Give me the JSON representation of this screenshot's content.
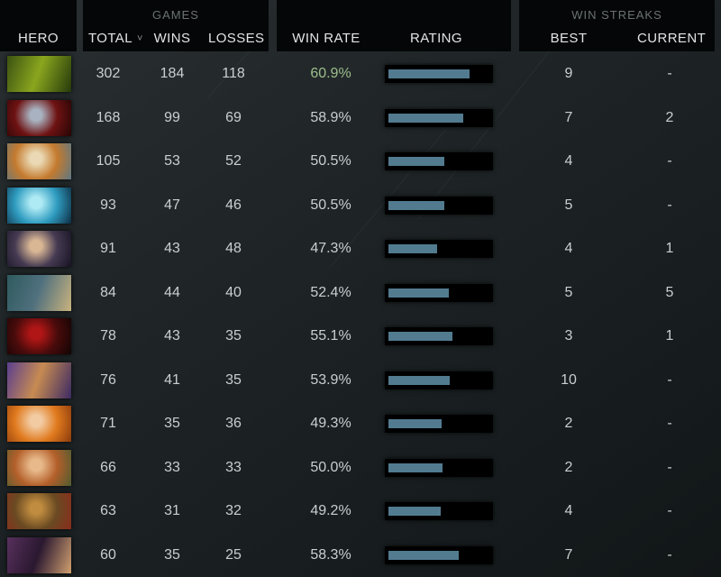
{
  "header": {
    "hero": "HERO",
    "games_group": "GAMES",
    "total": "TOTAL",
    "sort_indicator": "˅",
    "wins": "WINS",
    "losses": "LOSSES",
    "win_rate": "WIN RATE",
    "rating": "RATING",
    "streaks_group": "WIN STREAKS",
    "best": "BEST",
    "current": "CURRENT"
  },
  "colors": {
    "panel_bg": "#040607",
    "page_bg": "#1d2325",
    "text": "#c9cfcf",
    "header_text": "#e2e5e5",
    "group_text": "#6b7274",
    "rating_fill": "#527b90",
    "bar_bg": "#000000",
    "win_rate_highlight": "#9cbe8c"
  },
  "rows": [
    {
      "hero": {
        "name": "venomancer",
        "style": "linear",
        "colors": [
          "#3c5212",
          "#8aa61e",
          "#263a0b"
        ]
      },
      "total": "302",
      "wins": "184",
      "losses": "118",
      "win_rate": "60.9%",
      "win_rate_highlight": true,
      "rating_pct": 75,
      "best": "9",
      "current": "-"
    },
    {
      "hero": {
        "name": "queen-of-pain",
        "style": "radial",
        "colors": [
          "#a8b2c0",
          "#6e1212",
          "#260505"
        ]
      },
      "total": "168",
      "wins": "99",
      "losses": "69",
      "win_rate": "58.9%",
      "win_rate_highlight": false,
      "rating_pct": 69,
      "best": "7",
      "current": "2"
    },
    {
      "hero": {
        "name": "juggernaut",
        "style": "radial",
        "colors": [
          "#ead9b4",
          "#c47a2e",
          "#5d7884"
        ]
      },
      "total": "105",
      "wins": "53",
      "losses": "52",
      "win_rate": "50.5%",
      "win_rate_highlight": false,
      "rating_pct": 52,
      "best": "4",
      "current": "-"
    },
    {
      "hero": {
        "name": "storm-spirit",
        "style": "radial",
        "colors": [
          "#aeeaf4",
          "#2f9cc0",
          "#0d2c42"
        ]
      },
      "total": "93",
      "wins": "47",
      "losses": "46",
      "win_rate": "50.5%",
      "win_rate_highlight": false,
      "rating_pct": 52,
      "best": "5",
      "current": "-"
    },
    {
      "hero": {
        "name": "mirana",
        "style": "radial",
        "colors": [
          "#d9b795",
          "#453a52",
          "#171322"
        ]
      },
      "total": "91",
      "wins": "43",
      "losses": "48",
      "win_rate": "47.3%",
      "win_rate_highlight": false,
      "rating_pct": 45,
      "best": "4",
      "current": "1"
    },
    {
      "hero": {
        "name": "slark",
        "style": "linear",
        "colors": [
          "#2e5a5e",
          "#50707e",
          "#c9b37e"
        ]
      },
      "total": "84",
      "wins": "44",
      "losses": "40",
      "win_rate": "52.4%",
      "win_rate_highlight": false,
      "rating_pct": 56,
      "best": "5",
      "current": "5"
    },
    {
      "hero": {
        "name": "shadow-fiend",
        "style": "radial",
        "colors": [
          "#b01616",
          "#4a0b0b",
          "#120404"
        ]
      },
      "total": "78",
      "wins": "43",
      "losses": "35",
      "win_rate": "55.1%",
      "win_rate_highlight": false,
      "rating_pct": 59,
      "best": "3",
      "current": "1"
    },
    {
      "hero": {
        "name": "anti-mage",
        "style": "linear",
        "colors": [
          "#5c3f8e",
          "#c78b52",
          "#3d2a63"
        ]
      },
      "total": "76",
      "wins": "41",
      "losses": "35",
      "win_rate": "53.9%",
      "win_rate_highlight": false,
      "rating_pct": 57,
      "best": "10",
      "current": "-"
    },
    {
      "hero": {
        "name": "lina",
        "style": "radial",
        "colors": [
          "#f2cba2",
          "#e07a1e",
          "#8a3a0c"
        ]
      },
      "total": "71",
      "wins": "35",
      "losses": "36",
      "win_rate": "49.3%",
      "win_rate_highlight": false,
      "rating_pct": 49,
      "best": "2",
      "current": "-"
    },
    {
      "hero": {
        "name": "windranger",
        "style": "radial",
        "colors": [
          "#e8b98a",
          "#b35f2a",
          "#4e5c30"
        ]
      },
      "total": "66",
      "wins": "33",
      "losses": "33",
      "win_rate": "50.0%",
      "win_rate_highlight": false,
      "rating_pct": 50,
      "best": "2",
      "current": "-"
    },
    {
      "hero": {
        "name": "earthshaker",
        "style": "radial",
        "colors": [
          "#c08c3f",
          "#6a4a22",
          "#8a2c1c"
        ]
      },
      "total": "63",
      "wins": "31",
      "losses": "32",
      "win_rate": "49.2%",
      "win_rate_highlight": false,
      "rating_pct": 48,
      "best": "4",
      "current": "-"
    },
    {
      "hero": {
        "name": "silencer",
        "style": "linear",
        "colors": [
          "#57305c",
          "#2a1830",
          "#d0a070"
        ]
      },
      "total": "60",
      "wins": "35",
      "losses": "25",
      "win_rate": "58.3%",
      "win_rate_highlight": false,
      "rating_pct": 65,
      "best": "7",
      "current": "-"
    }
  ]
}
